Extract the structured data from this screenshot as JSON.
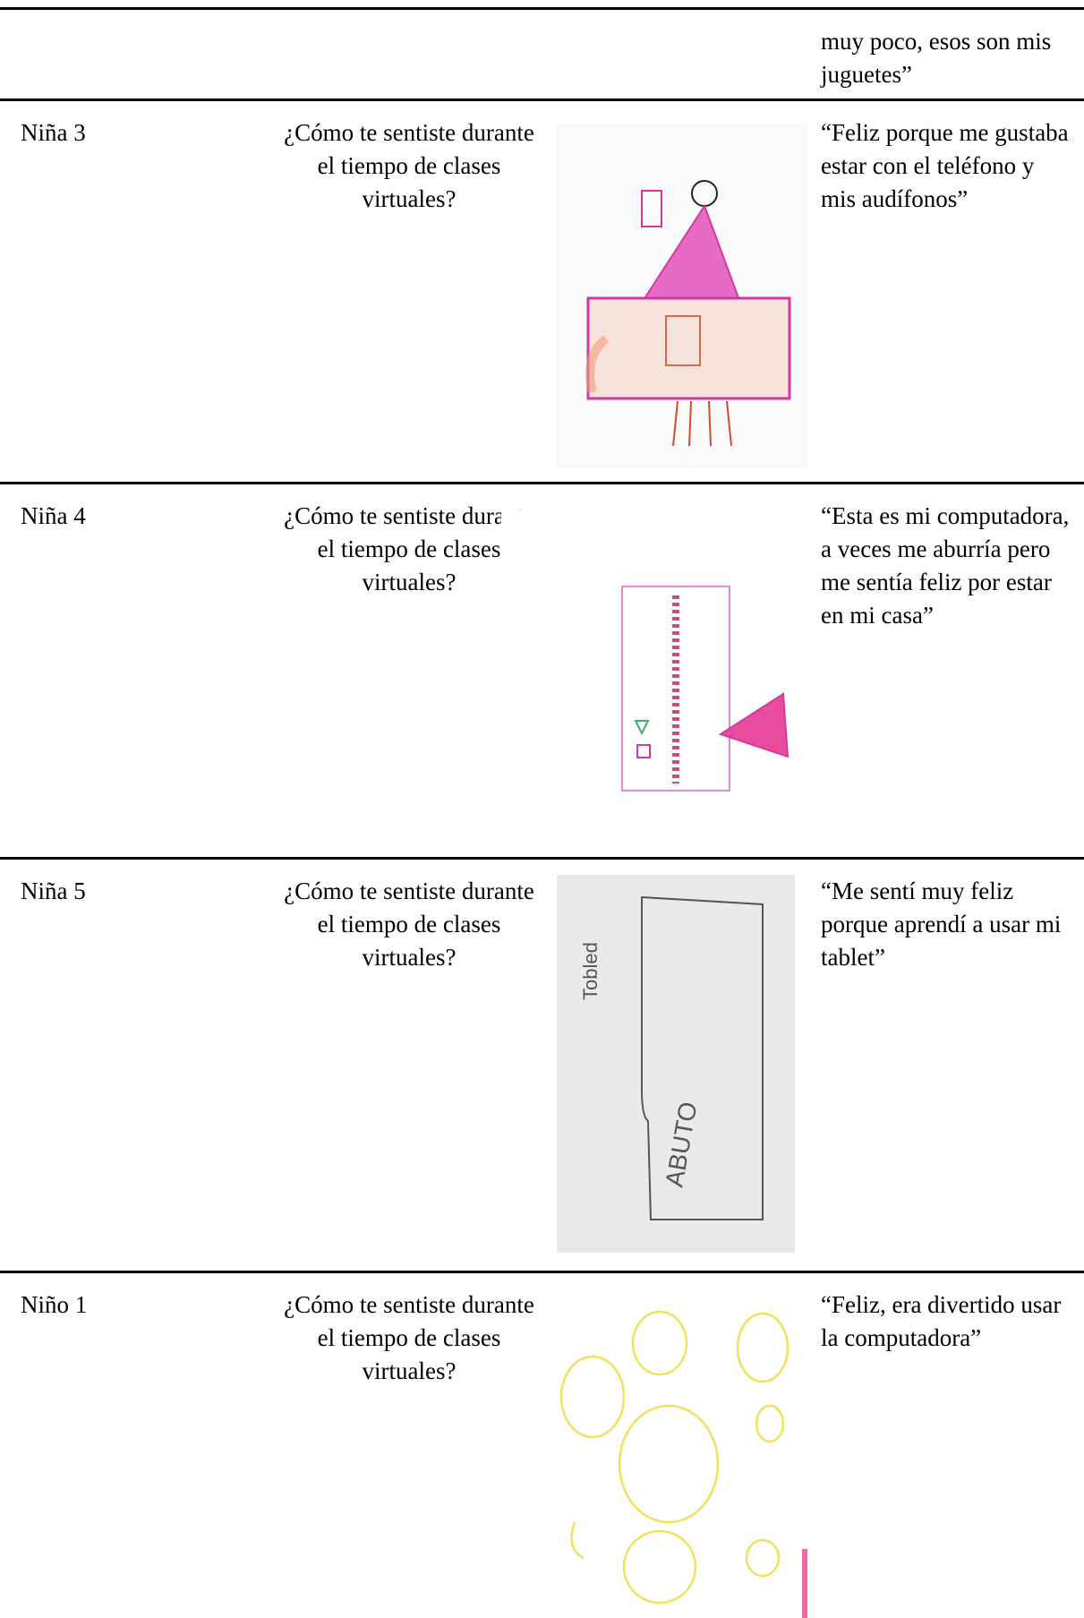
{
  "table": {
    "rows": [
      {
        "response": "muy poco, esos son mis juguetes”"
      },
      {
        "participant": "Niña 3",
        "question": "¿Cómo te sentiste durante el tiempo de clases virtuales?",
        "response": "“Feliz porque me gustaba estar con el teléfono y mis audífonos”"
      },
      {
        "participant": "Niña 4",
        "question": "¿Cómo te sentiste durante el tiempo de clases virtuales?",
        "response": "“Esta es mi computadora, a veces me aburría pero me sentía feliz por estar en mi casa”"
      },
      {
        "participant": "Niña 5",
        "question": "¿Cómo te sentiste durante el tiempo de clases virtuales?",
        "response": "“Me sentí muy feliz porque aprendí a usar mi tablet”"
      },
      {
        "participant": "Niño 1",
        "question": "¿Cómo te sentiste durante el tiempo de clases virtuales?",
        "response": "“Feliz, era divertido usar la computadora”"
      }
    ]
  }
}
